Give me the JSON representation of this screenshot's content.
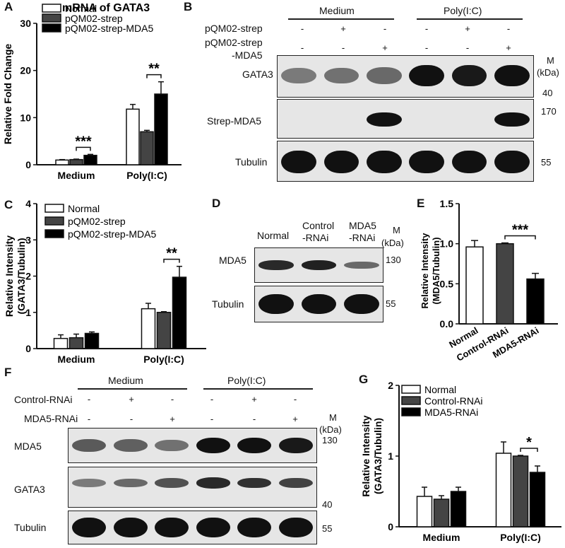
{
  "panel_letters": {
    "A": "A",
    "B": "B",
    "C": "C",
    "D": "D",
    "E": "E",
    "F": "F",
    "G": "G"
  },
  "colors": {
    "normal": "#ffffff",
    "strep": "#444444",
    "mda5": "#000000",
    "blot_bg": "#e6e6e6"
  },
  "chart_data": [
    {
      "panel": "A",
      "type": "bar",
      "title": "mRNA of GATA3",
      "ylabel": "Relative Fold Change",
      "ylim": [
        0,
        30
      ],
      "yticks": [
        "0",
        "10",
        "20",
        "30"
      ],
      "categories": [
        "Medium",
        "Poly(I:C)"
      ],
      "series": [
        {
          "name": "Normal",
          "values": [
            1.0,
            11.8
          ],
          "errors": [
            0.1,
            1.0
          ]
        },
        {
          "name": "pQM02-strep",
          "values": [
            1.1,
            7.0
          ],
          "errors": [
            0.1,
            0.3
          ]
        },
        {
          "name": "pQM02-strep-MDA5",
          "values": [
            2.0,
            15.0
          ],
          "errors": [
            0.2,
            2.6
          ]
        }
      ],
      "significance": [
        {
          "category": "Medium",
          "label": "***"
        },
        {
          "category": "Poly(I:C)",
          "label": "**"
        }
      ]
    },
    {
      "panel": "C",
      "type": "bar",
      "title": "",
      "ylabel": "Relative Intensity (GATA3/Tubulin)",
      "ylabel_lines": [
        "Relative Intensity",
        "(GATA3/Tubulin)"
      ],
      "ylim": [
        0,
        4
      ],
      "yticks": [
        "0",
        "1",
        "2",
        "3",
        "4"
      ],
      "categories": [
        "Medium",
        "Poly(I:C)"
      ],
      "series": [
        {
          "name": "Normal",
          "values": [
            0.28,
            1.1
          ],
          "errors": [
            0.1,
            0.15
          ]
        },
        {
          "name": "pQM02-strep",
          "values": [
            0.3,
            1.0
          ],
          "errors": [
            0.1,
            0.02
          ]
        },
        {
          "name": "pQM02-strep-MDA5",
          "values": [
            0.42,
            1.97
          ],
          "errors": [
            0.04,
            0.3
          ]
        }
      ],
      "significance": [
        {
          "category": "Poly(I:C)",
          "label": "**"
        }
      ]
    },
    {
      "panel": "E",
      "type": "bar",
      "title": "",
      "ylabel": "Relative Intensity (MDA5/Tubulin)",
      "ylabel_lines": [
        "Relative Intensity",
        "(MDA5/Tubulin)"
      ],
      "ylim": [
        0,
        1.5
      ],
      "yticks": [
        "0.0",
        "0.5",
        "1.0",
        "1.5"
      ],
      "categories": [
        "Normal",
        "Control-RNAi",
        "MDA5-RNAi"
      ],
      "series": [
        {
          "name": "",
          "values": [
            0.96,
            1.0,
            0.56
          ],
          "errors": [
            0.08,
            0.01,
            0.07
          ]
        }
      ],
      "significance": [
        {
          "between": [
            "Control-RNAi",
            "MDA5-RNAi"
          ],
          "label": "***"
        }
      ]
    },
    {
      "panel": "G",
      "type": "bar",
      "title": "",
      "ylabel": "Relative Intensity (GATA3/Tubulin)",
      "ylabel_lines": [
        "Relative Intensity",
        "(GATA3/Tubulin)"
      ],
      "ylim": [
        0,
        2
      ],
      "yticks": [
        "0",
        "1",
        "2"
      ],
      "categories": [
        "Medium",
        "Poly(I:C)"
      ],
      "series": [
        {
          "name": "Normal",
          "values": [
            0.43,
            1.04
          ],
          "errors": [
            0.13,
            0.16
          ]
        },
        {
          "name": "Control-RNAi",
          "values": [
            0.39,
            1.0
          ],
          "errors": [
            0.05,
            0.01
          ]
        },
        {
          "name": "MDA5-RNAi",
          "values": [
            0.5,
            0.77
          ],
          "errors": [
            0.06,
            0.09
          ]
        }
      ],
      "significance": [
        {
          "category": "Poly(I:C)",
          "label": "*"
        }
      ]
    }
  ],
  "blot_B": {
    "group1": "Medium",
    "group2": "Poly(I:C)",
    "row1_label": "pQM02-strep",
    "row2_label_a": "pQM02-strep",
    "row2_label_b": "-MDA5",
    "row1_marks": [
      "-",
      "+",
      "-",
      "-",
      "+",
      "-"
    ],
    "row2_marks": [
      "-",
      "-",
      "+",
      "-",
      "-",
      "+"
    ],
    "strip_labels": [
      "GATA3",
      "Strep-MDA5",
      "Tubulin"
    ],
    "marker_m": "M",
    "marker_unit": "(kDa)",
    "markers": [
      "40",
      "170",
      "55"
    ],
    "band_intensity": {
      "GATA3": [
        0.35,
        0.4,
        0.45,
        1.0,
        0.95,
        1.0
      ],
      "Strep-MDA5": [
        0,
        0,
        1.0,
        0,
        0,
        1.0
      ],
      "Tubulin": [
        1,
        1,
        1,
        1,
        1,
        1
      ]
    }
  },
  "blot_D": {
    "lanes": [
      "Normal",
      "Control",
      "-RNAi",
      "MDA5",
      "-RNAi"
    ],
    "marker_m": "M",
    "marker_unit": "(kDa)",
    "strip_labels": [
      "MDA5",
      "Tubulin"
    ],
    "markers": [
      "130",
      "55"
    ],
    "band_intensity": {
      "MDA5": [
        0.85,
        0.9,
        0.45
      ],
      "Tubulin": [
        1,
        1,
        1
      ]
    }
  },
  "blot_F": {
    "group1": "Medium",
    "group2": "Poly(I:C)",
    "row1_label": "Control-RNAi",
    "row2_label": "MDA5-RNAi",
    "row1_marks": [
      "-",
      "+",
      "-",
      "-",
      "+",
      "-"
    ],
    "row2_marks": [
      "-",
      "-",
      "+",
      "-",
      "-",
      "+"
    ],
    "strip_labels": [
      "MDA5",
      "GATA3",
      "Tubulin"
    ],
    "marker_m": "M",
    "marker_unit": "(kDa)",
    "markers": [
      "130",
      "40",
      "55"
    ],
    "band_intensity": {
      "MDA5": [
        0.55,
        0.5,
        0.4,
        1.0,
        1.0,
        0.95
      ],
      "GATA3": [
        0.35,
        0.45,
        0.6,
        0.85,
        0.8,
        0.7
      ],
      "Tubulin": [
        1,
        1,
        1,
        1,
        1,
        1
      ]
    }
  }
}
